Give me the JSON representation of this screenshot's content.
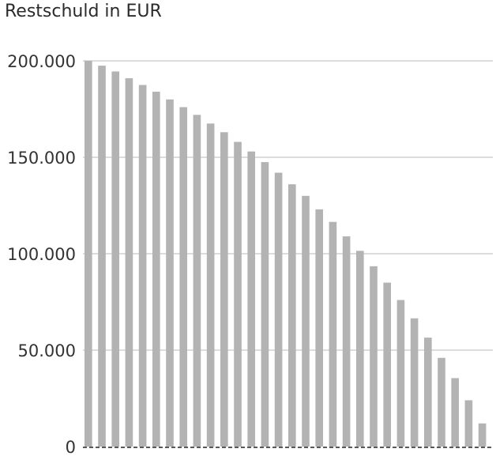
{
  "chart_data": {
    "type": "bar",
    "title": "Restschuld in EUR",
    "xlabel": "",
    "ylabel": "",
    "ylim": [
      0,
      200000
    ],
    "yticks": [
      0,
      50000,
      100000,
      150000,
      200000
    ],
    "ytick_labels": [
      "0",
      "50.000",
      "100.000",
      "150.000",
      "200.000"
    ],
    "grid": true,
    "bar_color": "#b3b3b3",
    "grid_color": "#c8c8c8",
    "values": [
      200000,
      197500,
      194500,
      191000,
      187500,
      184000,
      180000,
      176000,
      172000,
      167500,
      163000,
      158000,
      153000,
      147500,
      142000,
      136000,
      130000,
      123000,
      116500,
      109000,
      101500,
      93500,
      85000,
      76000,
      66500,
      56500,
      46000,
      35500,
      24000,
      12000
    ]
  }
}
